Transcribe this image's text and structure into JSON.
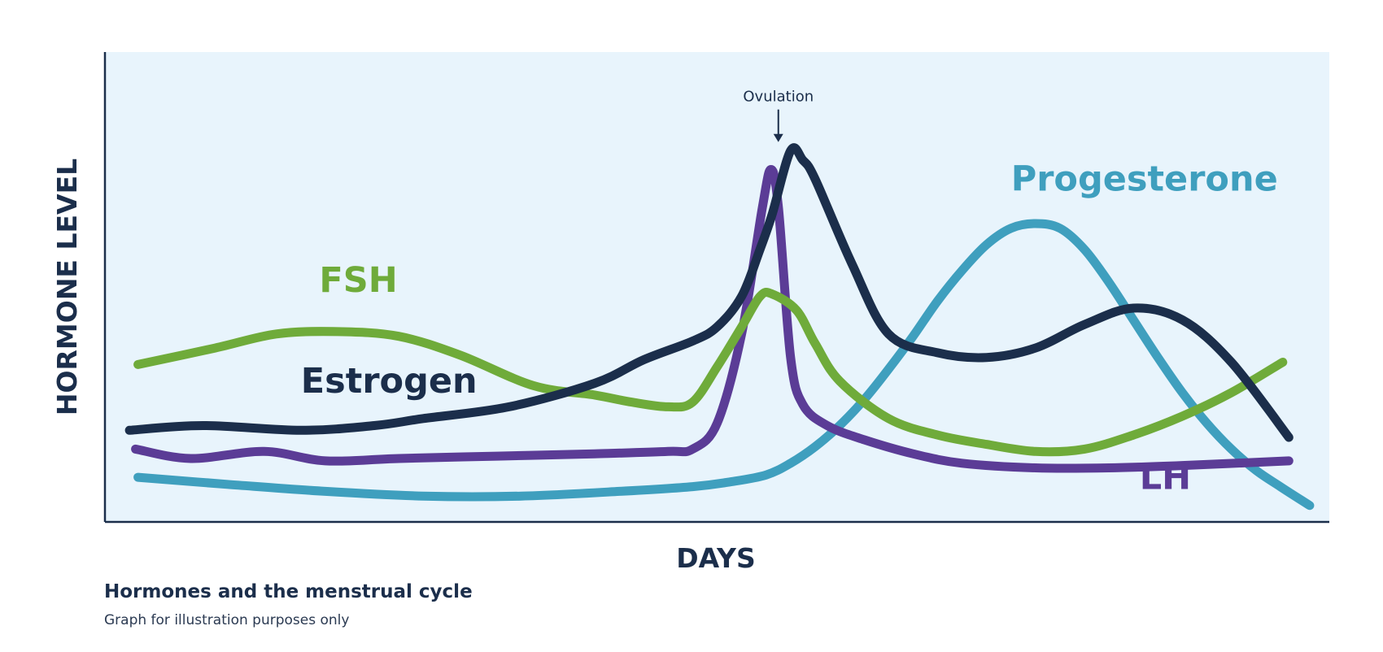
{
  "chart_data": {
    "type": "line",
    "xlabel": "DAYS",
    "ylabel": "HORMONE LEVEL",
    "xlim": [
      0,
      100
    ],
    "ylim": [
      0,
      100
    ],
    "grid": false,
    "legend": "none (series labelled directly on the chart)",
    "background_color": "#e8f4fc",
    "axis_color": "#1b2e4b",
    "annotations": [
      {
        "text": "Ovulation",
        "x": 55,
        "y": 89.5,
        "marker": "down-arrow"
      }
    ],
    "series": [
      {
        "name": "Estrogen",
        "color": "#1b2e4b",
        "label": {
          "x": 16,
          "y": 27.5
        },
        "x": [
          2,
          8,
          16,
          22,
          26,
          33,
          40,
          44,
          48,
          50,
          52,
          53.5,
          54.5,
          56,
          57,
          58,
          61,
          64,
          68,
          72,
          76,
          80,
          84,
          88,
          92,
          96.7
        ],
        "y": [
          19.5,
          20.5,
          19.5,
          20.5,
          22,
          24.5,
          29.5,
          34.5,
          38.5,
          41.5,
          48,
          58,
          65.5,
          79,
          77,
          73,
          55,
          40,
          36,
          35,
          37,
          42,
          45.5,
          43,
          34,
          18
        ]
      },
      {
        "name": "FSH",
        "color": "#6fab3a",
        "label": {
          "x": 17.5,
          "y": 49
        },
        "x": [
          2.7,
          9,
          14,
          19,
          24,
          29,
          35,
          40,
          43,
          46,
          48,
          50,
          52,
          53.5,
          54.5,
          56.5,
          58,
          60,
          64,
          68,
          72,
          76,
          80,
          84,
          88,
          92,
          96.2
        ],
        "y": [
          33.5,
          37,
          40,
          40.5,
          39.5,
          35.5,
          29,
          27,
          25.5,
          24.5,
          25.5,
          33,
          41.5,
          48,
          48.5,
          45,
          38,
          30,
          22,
          18.5,
          16.5,
          15,
          15.5,
          18.5,
          22.5,
          27.5,
          34
        ]
      },
      {
        "name": "LH",
        "color": "#5b3c96",
        "label": {
          "x": 84.5,
          "y": 7
        },
        "x": [
          2.5,
          7,
          13,
          18,
          24,
          32,
          40,
          46,
          48,
          50,
          52,
          53.7,
          54.4,
          55,
          56,
          57,
          59,
          62,
          66,
          70,
          76,
          82,
          88,
          96.7
        ],
        "y": [
          15.5,
          13.5,
          15,
          13,
          13.5,
          14,
          14.5,
          15,
          15.5,
          21,
          40,
          67,
          75,
          67,
          35,
          25,
          20.5,
          17.5,
          14.5,
          12.5,
          11.5,
          11.5,
          12,
          13
        ]
      },
      {
        "name": "Progesterone",
        "color": "#3f9fbe",
        "label": {
          "x": 74,
          "y": 70.5
        },
        "x": [
          2.7,
          10,
          18,
          26,
          34,
          42,
          48,
          51,
          54,
          56,
          58,
          60,
          62,
          64,
          66,
          68,
          70,
          72,
          74,
          76,
          78,
          80,
          82,
          84,
          86,
          88,
          90,
          92,
          94,
          96,
          98.4
        ],
        "y": [
          9.5,
          8,
          6.5,
          5.5,
          5.5,
          6.5,
          7.5,
          8.5,
          10,
          12.5,
          16,
          20.5,
          26,
          32.5,
          39.5,
          47,
          53.5,
          59,
          62.5,
          63.5,
          62.5,
          58,
          51,
          43,
          35,
          27.5,
          21,
          15.5,
          11,
          7.5,
          3.5
        ]
      }
    ]
  },
  "caption": {
    "title": "Hormones and the menstrual cycle",
    "subtitle": "Graph for illustration purposes only"
  }
}
